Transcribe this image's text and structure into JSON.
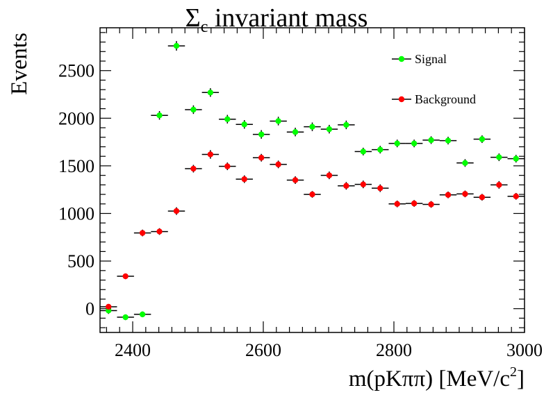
{
  "chart_data": {
    "type": "scatter",
    "title": {
      "main": "Σ",
      "sub": "c",
      "rest": " invariant mass"
    },
    "xlabel": {
      "text": "m(pKππ) [MeV/c",
      "sup": "2",
      "close": "]"
    },
    "ylabel": "Events",
    "xlim": [
      2350,
      3000
    ],
    "ylim": [
      -250,
      2950
    ],
    "x_ticks": [
      2400,
      2600,
      2800,
      3000
    ],
    "y_ticks": [
      0,
      500,
      1000,
      1500,
      2000,
      2500
    ],
    "x_tick_labels": [
      "2400",
      "2600",
      "2800",
      "3000"
    ],
    "y_tick_labels": [
      "0",
      "500",
      "1000",
      "1500",
      "2000",
      "2500"
    ],
    "bin_width": 26,
    "x": [
      2363,
      2389,
      2415,
      2441,
      2467,
      2493,
      2519,
      2545,
      2571,
      2597,
      2623,
      2649,
      2675,
      2701,
      2727,
      2753,
      2779,
      2805,
      2831,
      2857,
      2883,
      2909,
      2935,
      2961,
      2987
    ],
    "legend_position": "top-right",
    "series": [
      {
        "name": "Signal",
        "color": "#00ff00",
        "values": [
          -20,
          -90,
          -60,
          2030,
          2760,
          2090,
          2270,
          1990,
          1935,
          1830,
          1970,
          1855,
          1910,
          1885,
          1930,
          1650,
          1670,
          1735,
          1735,
          1770,
          1765,
          1530,
          1780,
          1590,
          1575
        ],
        "errors": [
          35,
          30,
          30,
          45,
          50,
          45,
          45,
          45,
          45,
          45,
          45,
          45,
          45,
          45,
          45,
          40,
          40,
          40,
          40,
          40,
          40,
          40,
          40,
          40,
          40
        ]
      },
      {
        "name": "Background",
        "color": "#ff0000",
        "values": [
          20,
          340,
          795,
          810,
          1025,
          1470,
          1620,
          1495,
          1360,
          1585,
          1515,
          1350,
          1200,
          1400,
          1290,
          1305,
          1265,
          1100,
          1105,
          1095,
          1195,
          1205,
          1170,
          1300,
          1180
        ],
        "errors": [
          25,
          30,
          35,
          35,
          40,
          40,
          45,
          40,
          40,
          40,
          40,
          40,
          35,
          40,
          40,
          40,
          40,
          35,
          35,
          35,
          35,
          35,
          35,
          40,
          35
        ]
      }
    ]
  }
}
